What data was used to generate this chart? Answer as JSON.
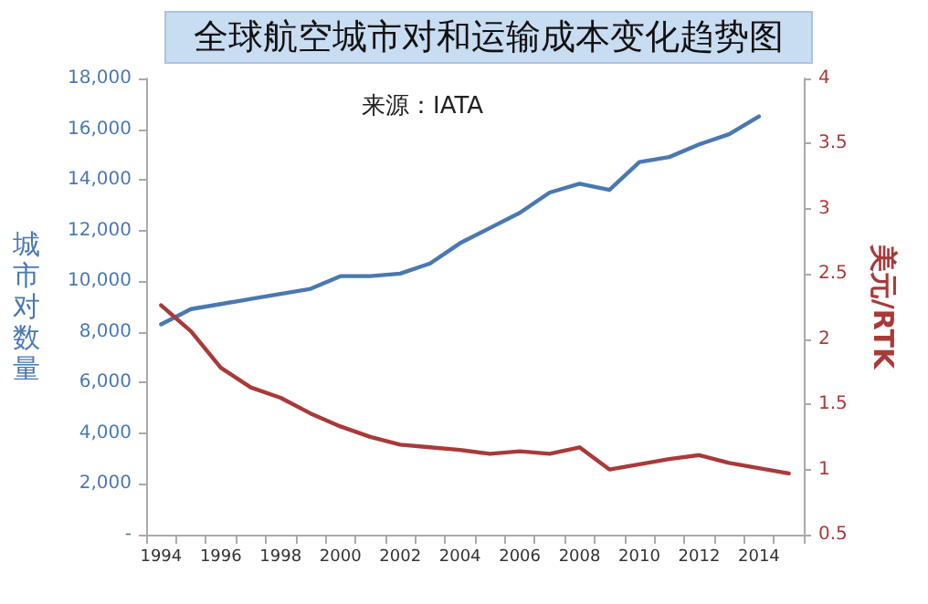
{
  "chart_data": {
    "type": "line",
    "title": "全球航空城市对和运输成本变化趋势图",
    "annotations": [
      "来源：IATA"
    ],
    "ylabel": "城市对数量",
    "y2label": "美元/RTK",
    "categories": [
      "1994",
      null,
      "1996",
      null,
      "1998",
      null,
      "2000",
      null,
      "2002",
      null,
      "2004",
      null,
      "2006",
      null,
      "2008",
      null,
      "2010",
      null,
      "2012",
      null,
      "2014",
      null
    ],
    "series": [
      {
        "color": "#4a78b0",
        "values": [
          8300,
          8900,
          9100,
          9300,
          9500,
          9700,
          10200,
          10200,
          10300,
          10700,
          11500,
          12100,
          12700,
          13500,
          13850,
          13600,
          14700,
          14900,
          15400,
          15800,
          16500,
          null
        ]
      },
      {
        "color": "#a83a3a",
        "axis": "y2",
        "values": [
          2.26,
          2.06,
          1.78,
          1.63,
          1.55,
          1.43,
          1.33,
          1.25,
          1.19,
          1.17,
          1.15,
          1.12,
          1.14,
          1.12,
          1.17,
          1.0,
          1.04,
          1.08,
          1.11,
          1.05,
          1.01,
          0.97
        ]
      }
    ],
    "ylim": [
      0,
      18000
    ],
    "yticks": [
      {
        "value": 0,
        "label": "-"
      },
      {
        "value": 2000,
        "label": "2,000"
      },
      {
        "value": 4000,
        "label": "4,000"
      },
      {
        "value": 6000,
        "label": "6,000"
      },
      {
        "value": 8000,
        "label": "8,000"
      },
      {
        "value": 10000,
        "label": "10,000"
      },
      {
        "value": 12000,
        "label": "12,000"
      },
      {
        "value": 14000,
        "label": "14,000"
      },
      {
        "value": 16000,
        "label": "16,000"
      },
      {
        "value": 18000,
        "label": "18,000"
      }
    ],
    "y2lim": [
      0.5,
      4
    ],
    "y2ticks": [
      0.5,
      1,
      1.5,
      2,
      2.5,
      3,
      3.5,
      4
    ],
    "marker": "none",
    "line_style": "solid"
  }
}
